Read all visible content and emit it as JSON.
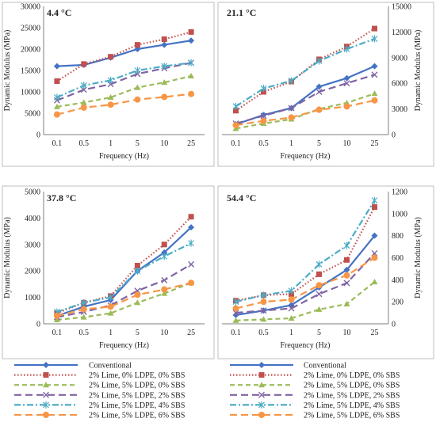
{
  "chart_data": [
    {
      "type": "line",
      "panel_label": "4.4 °C",
      "xlabel": "Frequency (Hz)",
      "ylabel": "Dynamic Modulus (MPa)",
      "y_axis_side": "left",
      "ylim": [
        0,
        30000
      ],
      "yticks": [
        0,
        5000,
        10000,
        15000,
        20000,
        25000,
        30000
      ],
      "grid": false,
      "categories": [
        "0.1",
        "0.5",
        "1",
        "5",
        "10",
        "25"
      ],
      "series": [
        {
          "name": "Conventional",
          "values": [
            16000,
            16300,
            18000,
            20000,
            21000,
            22000
          ]
        },
        {
          "name": "2% Lime, 0% LDPE, 0% SBS",
          "values": [
            12500,
            16500,
            18200,
            21000,
            22300,
            24000
          ]
        },
        {
          "name": "2% Lime, 5% LDPE, 0% SBS",
          "values": [
            6500,
            7500,
            8700,
            11000,
            12200,
            13700
          ]
        },
        {
          "name": "2% Lime, 5% LDPE, 2% SBS",
          "values": [
            8000,
            10500,
            11800,
            14200,
            15500,
            16800
          ]
        },
        {
          "name": "2% Lime, 5% LDPE, 4% SBS",
          "values": [
            8700,
            11500,
            12700,
            15000,
            16000,
            16800
          ]
        },
        {
          "name": "2% Lime, 5% LDPE, 6% SBS",
          "values": [
            4700,
            6300,
            7000,
            8200,
            8800,
            9500
          ]
        }
      ]
    },
    {
      "type": "line",
      "panel_label": "21.1 °C",
      "xlabel": "Frequency (Hz)",
      "ylabel": "Dynamic Modulus (MPa)",
      "y_axis_side": "right",
      "ylim": [
        0,
        15000
      ],
      "yticks": [
        0,
        3000,
        6000,
        9000,
        12000,
        15000
      ],
      "grid": false,
      "categories": [
        "0.1",
        "0.5",
        "1",
        "5",
        "10",
        "25"
      ],
      "series": [
        {
          "name": "Conventional",
          "values": [
            1200,
            2300,
            3100,
            5600,
            6600,
            8000
          ]
        },
        {
          "name": "2% Lime, 0% LDPE, 0% SBS",
          "values": [
            2800,
            5000,
            6200,
            8800,
            10300,
            12400
          ]
        },
        {
          "name": "2% Lime, 5% LDPE, 0% SBS",
          "values": [
            700,
            1300,
            1800,
            3000,
            3700,
            4800
          ]
        },
        {
          "name": "2% Lime, 5% LDPE, 2% SBS",
          "values": [
            1300,
            2200,
            3100,
            5000,
            6000,
            7000
          ]
        },
        {
          "name": "2% Lime, 5% LDPE, 4% SBS",
          "values": [
            3300,
            5400,
            6300,
            8600,
            10000,
            11200
          ]
        },
        {
          "name": "2% Lime, 5% LDPE, 6% SBS",
          "values": [
            1100,
            1600,
            2000,
            2900,
            3300,
            4000
          ]
        }
      ]
    },
    {
      "type": "line",
      "panel_label": "37.8 °C",
      "xlabel": "Frequency (Hz)",
      "ylabel": "Dynamic Modulus (MPa)",
      "y_axis_side": "left",
      "ylim": [
        0,
        5000
      ],
      "yticks": [
        0,
        1000,
        2000,
        3000,
        4000,
        5000
      ],
      "grid": false,
      "categories": [
        "0.1",
        "0.5",
        "1",
        "5",
        "10",
        "25"
      ],
      "series": [
        {
          "name": "Conventional",
          "values": [
            300,
            650,
            900,
            2000,
            2700,
            3650
          ]
        },
        {
          "name": "2% Lime, 0% LDPE, 0% SBS",
          "values": [
            400,
            800,
            1050,
            2200,
            3000,
            4050
          ]
        },
        {
          "name": "2% Lime, 5% LDPE, 0% SBS",
          "values": [
            150,
            250,
            400,
            800,
            1150,
            1550
          ]
        },
        {
          "name": "2% Lime, 5% LDPE, 2% SBS",
          "values": [
            250,
            450,
            700,
            1250,
            1650,
            2250
          ]
        },
        {
          "name": "2% Lime, 5% LDPE, 4% SBS",
          "values": [
            450,
            800,
            1000,
            2000,
            2550,
            3050
          ]
        },
        {
          "name": "2% Lime, 5% LDPE, 6% SBS",
          "values": [
            300,
            550,
            650,
            1100,
            1300,
            1550
          ]
        }
      ]
    },
    {
      "type": "line",
      "panel_label": "54.4 °C",
      "xlabel": "Frequency (Hz)",
      "ylabel": "Dynamic Modulus (MPa)",
      "y_axis_side": "right",
      "ylim": [
        0,
        1200
      ],
      "yticks": [
        0,
        200,
        400,
        600,
        800,
        1000,
        1200
      ],
      "grid": false,
      "categories": [
        "0.1",
        "0.5",
        "1",
        "5",
        "10",
        "25"
      ],
      "series": [
        {
          "name": "Conventional",
          "values": [
            80,
            120,
            170,
            330,
            490,
            800
          ]
        },
        {
          "name": "2% Lime, 0% LDPE, 0% SBS",
          "values": [
            210,
            260,
            270,
            450,
            580,
            1060
          ]
        },
        {
          "name": "2% Lime, 5% LDPE, 0% SBS",
          "values": [
            30,
            40,
            50,
            130,
            180,
            380
          ]
        },
        {
          "name": "2% Lime, 5% LDPE, 2% SBS",
          "values": [
            100,
            120,
            140,
            270,
            370,
            640
          ]
        },
        {
          "name": "2% Lime, 5% LDPE, 4% SBS",
          "values": [
            200,
            260,
            300,
            540,
            710,
            1120
          ]
        },
        {
          "name": "2% Lime, 5% LDPE, 6% SBS",
          "values": [
            140,
            200,
            220,
            350,
            440,
            600
          ]
        }
      ]
    }
  ],
  "legend": {
    "placement": "bottom",
    "entries": [
      "Conventional",
      "2% Lime, 0% LDPE, 0% SBS",
      "2% Lime, 5% LDPE, 0% SBS",
      "2% Lime, 5% LDPE, 2% SBS",
      "2% Lime, 5% LDPE, 4% SBS",
      "2% Lime, 5% LDPE, 6% SBS"
    ]
  },
  "series_styles": [
    {
      "color": "#4472c4",
      "dash": "solid",
      "marker": "diamond"
    },
    {
      "color": "#c0504d",
      "dash": "dotted",
      "marker": "square"
    },
    {
      "color": "#9bbb59",
      "dash": "dashed",
      "marker": "triangle"
    },
    {
      "color": "#8064a2",
      "dash": "longdash",
      "marker": "x"
    },
    {
      "color": "#4bacc6",
      "dash": "dashdot",
      "marker": "star"
    },
    {
      "color": "#f79646",
      "dash": "longdash",
      "marker": "circle"
    }
  ]
}
